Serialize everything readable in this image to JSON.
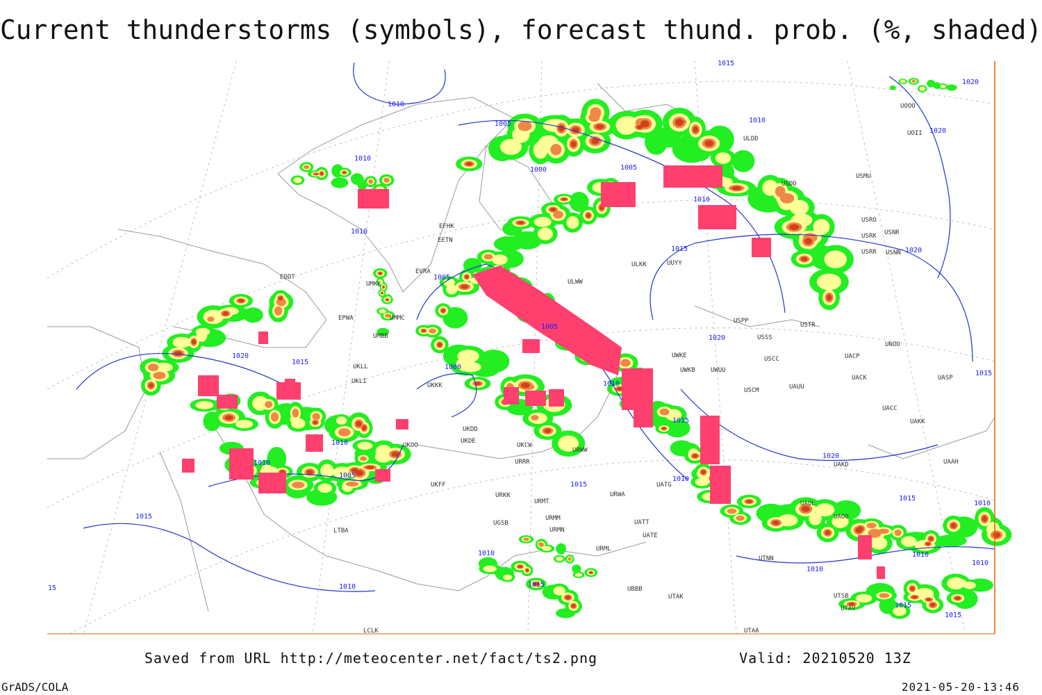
{
  "title": "Current thunderstorms (symbols), forecast thund. prob. (%, shaded)",
  "footer": {
    "source": "Saved from URL http://meteocenter.net/fact/ts2.png",
    "valid": "Valid: 20210520 13Z",
    "software": "GrADS/COLA",
    "timestamp": "2021-05-20-13:46"
  },
  "isobar_labels": [
    "1010",
    "1005",
    "1000",
    "1005",
    "1010",
    "1020",
    "1020",
    "1010",
    "1010",
    "1010",
    "1015",
    "1020",
    "1005",
    "1005",
    "1020",
    "1020",
    "1015",
    "1000",
    "1010",
    "1015",
    "1015",
    "1010",
    "1010",
    "1005",
    "1010",
    "1020",
    "1015",
    "1015",
    "1015",
    "1010",
    "1015",
    "1010",
    "1010",
    "1010",
    "1010",
    "1010",
    "1015",
    "1015",
    "1015",
    "15"
  ],
  "stations": [
    "EFHK",
    "EETN",
    "EVRA",
    "EDDT",
    "EPWA",
    "UMMC",
    "UMKK",
    "UMBB",
    "UKLL",
    "UKLI",
    "UKKK",
    "UKFF",
    "UKOO",
    "UKDD",
    "UKDE",
    "UKCW",
    "ULWW",
    "ULKK",
    "UUYY",
    "USPP",
    "UWKE",
    "UWKB",
    "UWUU",
    "USCM",
    "UAUU",
    "USCC",
    "USSS",
    "USTR",
    "UACP",
    "UACK",
    "UNOO",
    "UASP",
    "UACC",
    "UAKK",
    "UAKD",
    "UAAH",
    "UAOL",
    "UAOO",
    "UATG",
    "UATE",
    "UATT",
    "UBBB",
    "UTAK",
    "UTNN",
    "UTSB",
    "UTAV",
    "UTAA",
    "URWW",
    "URKK",
    "URMT",
    "URMM",
    "URMN",
    "URML",
    "URWA",
    "URRR",
    "UGSB",
    "LTBA",
    "LCLK",
    "USDD",
    "USMU",
    "USRR",
    "USRK",
    "USRO",
    "USNR",
    "USNN",
    "UOOO",
    "UOII",
    "ULDD"
  ]
}
